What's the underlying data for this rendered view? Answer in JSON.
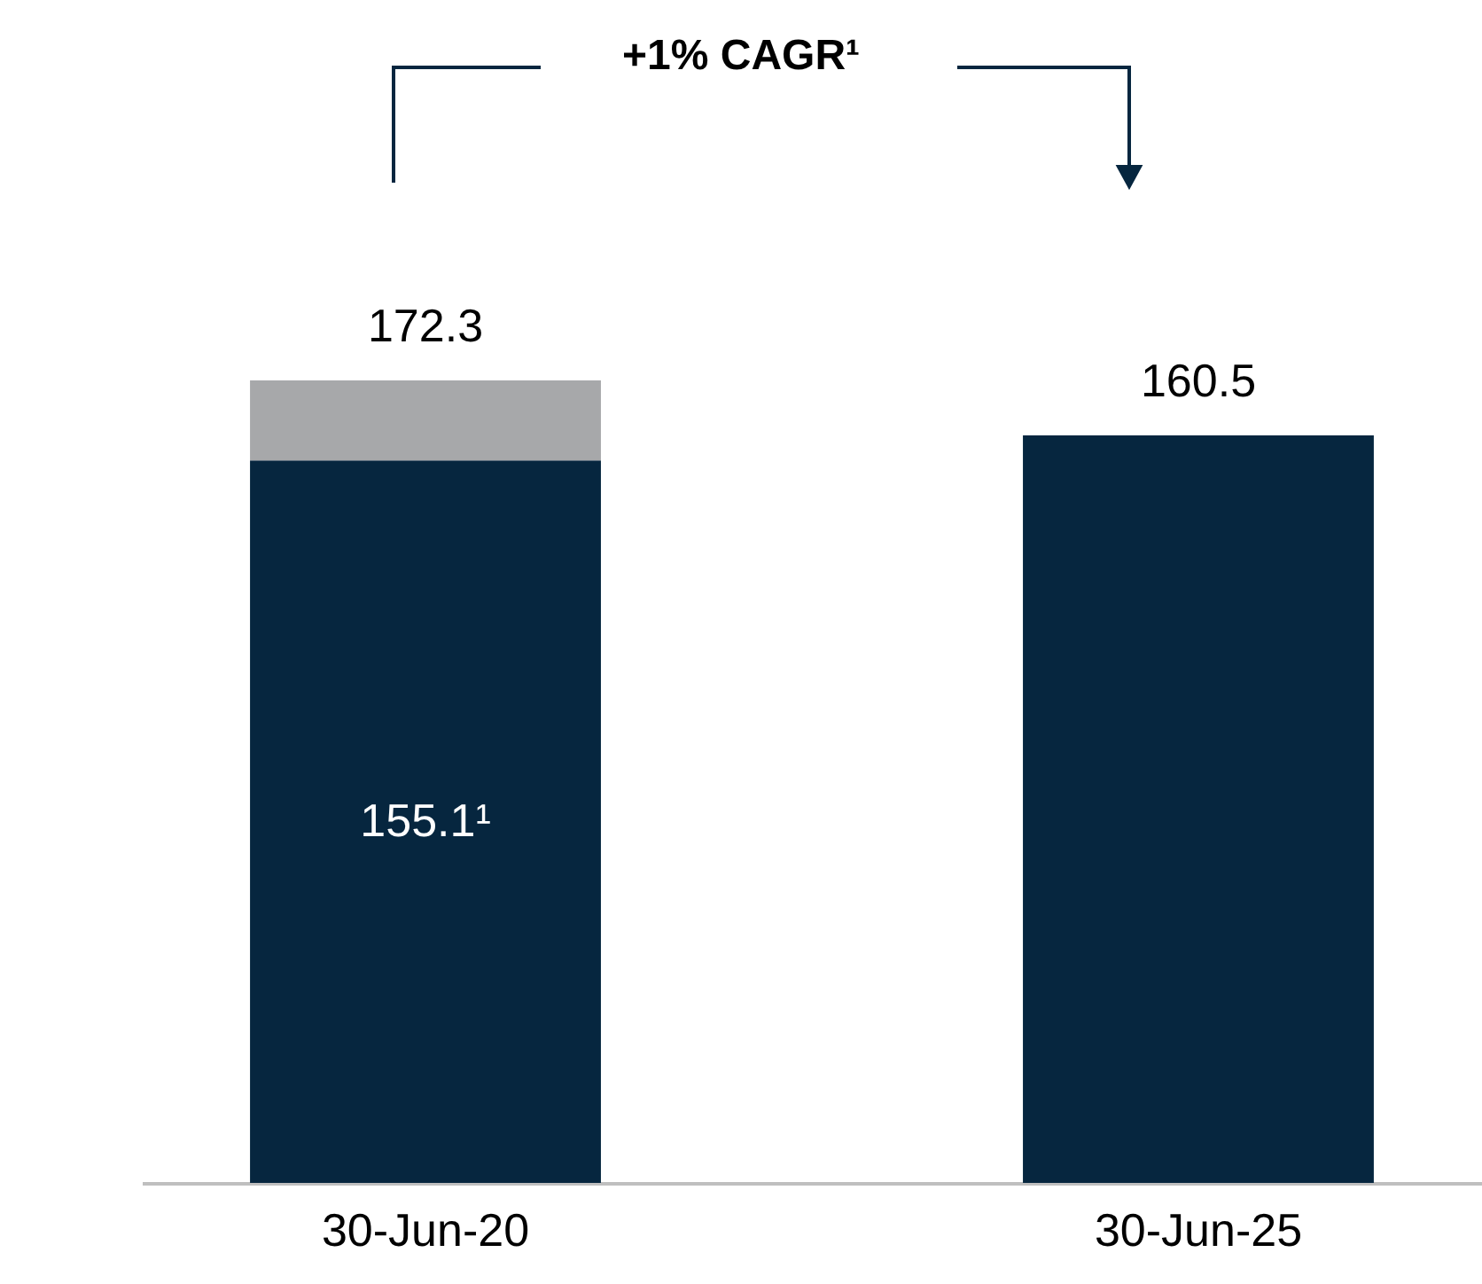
{
  "chart_data": {
    "type": "bar",
    "stacked": true,
    "categories": [
      "30-Jun-20",
      "30-Jun-25"
    ],
    "series": [
      {
        "color": "#06263f",
        "values": [
          155.1,
          160.5
        ],
        "value_labels": [
          "155.1¹",
          null
        ]
      },
      {
        "color": "#a7a8aa",
        "values": [
          17.2,
          null
        ]
      }
    ],
    "totals": [
      "172.3",
      "160.5"
    ],
    "annotations": [
      "+1% CAGR¹"
    ]
  }
}
